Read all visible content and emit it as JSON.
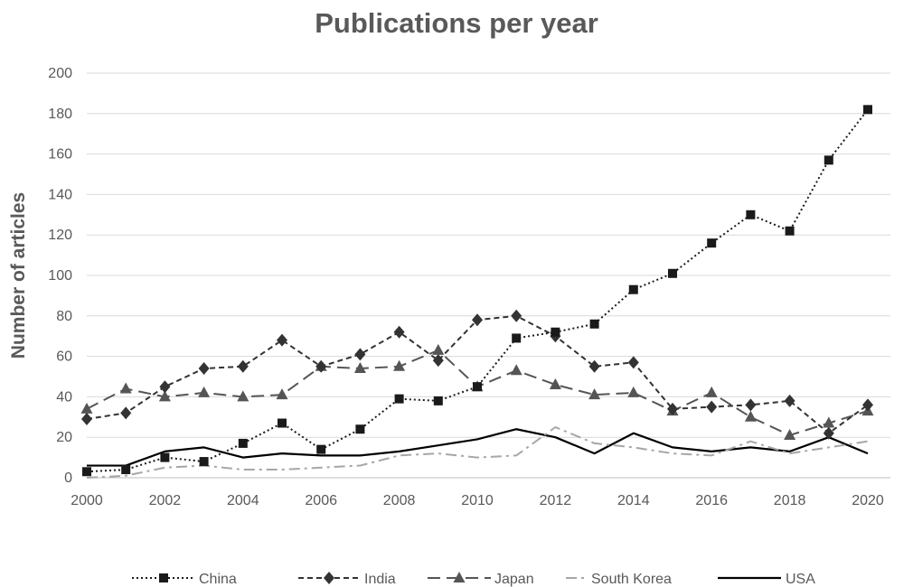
{
  "chart_data": {
    "type": "line",
    "title": "Publications per year",
    "xlabel": "",
    "ylabel": "Number of articles",
    "x": [
      2000,
      2001,
      2002,
      2003,
      2004,
      2005,
      2006,
      2007,
      2008,
      2009,
      2010,
      2011,
      2012,
      2013,
      2014,
      2015,
      2016,
      2017,
      2018,
      2019,
      2020
    ],
    "xticks": [
      2000,
      2002,
      2004,
      2006,
      2008,
      2010,
      2012,
      2014,
      2016,
      2018,
      2020
    ],
    "ylim": [
      0,
      200
    ],
    "yticks": [
      0,
      20,
      40,
      60,
      80,
      100,
      120,
      140,
      160,
      180,
      200
    ],
    "grid": "horizontal",
    "legend_position": "bottom",
    "series": [
      {
        "name": "China",
        "style": "dotted",
        "marker": "square",
        "color": "#1a1a1a",
        "values": [
          3,
          4,
          10,
          8,
          17,
          27,
          14,
          24,
          39,
          38,
          45,
          69,
          72,
          76,
          93,
          101,
          116,
          130,
          122,
          157,
          182
        ]
      },
      {
        "name": "India",
        "style": "dashed",
        "marker": "diamond",
        "color": "#333333",
        "values": [
          29,
          32,
          45,
          54,
          55,
          68,
          55,
          61,
          72,
          58,
          78,
          80,
          70,
          55,
          57,
          34,
          35,
          36,
          38,
          22,
          36
        ]
      },
      {
        "name": "Japan",
        "style": "longdash",
        "marker": "triangle",
        "color": "#555555",
        "values": [
          34,
          44,
          40,
          42,
          40,
          41,
          55,
          54,
          55,
          63,
          45,
          53,
          46,
          41,
          42,
          33,
          42,
          30,
          21,
          27,
          33
        ]
      },
      {
        "name": "South Korea",
        "style": "dashdot",
        "marker": "none",
        "color": "#a6a6a6",
        "values": [
          0,
          1,
          5,
          6,
          4,
          4,
          5,
          6,
          11,
          12,
          10,
          11,
          25,
          17,
          15,
          12,
          11,
          18,
          12,
          15,
          18
        ]
      },
      {
        "name": "USA",
        "style": "solid",
        "marker": "none",
        "color": "#000000",
        "values": [
          6,
          6,
          13,
          15,
          10,
          12,
          11,
          11,
          13,
          16,
          19,
          24,
          20,
          12,
          22,
          15,
          13,
          15,
          13,
          20,
          12
        ]
      }
    ]
  }
}
